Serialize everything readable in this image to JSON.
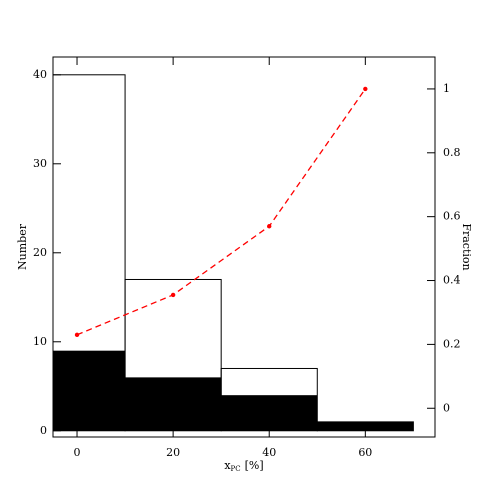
{
  "chart_data": {
    "type": "histogram",
    "bins": [
      -10,
      10,
      30,
      50,
      70
    ],
    "series": [
      {
        "type": "histogram",
        "style": "step",
        "color": "#000000",
        "values": [
          40,
          17,
          7,
          1
        ]
      },
      {
        "type": "histogram",
        "style": "filled",
        "color": "#000000",
        "values": [
          9,
          6,
          4,
          1
        ]
      },
      {
        "type": "line",
        "axis": "y2",
        "style": "dashed",
        "color": "#ff0000",
        "x": [
          0,
          20,
          40,
          60
        ],
        "values": [
          0.23,
          0.355,
          0.57,
          1.0
        ]
      }
    ],
    "xlabel": {
      "main": "x",
      "sub": "PC",
      "unit": "[%]"
    },
    "ylabel": "Number",
    "y2label": "Fraction",
    "xlim": [
      -5,
      74.5
    ],
    "ylim": [
      -0.7,
      42
    ],
    "y2lim": [
      -0.09,
      1.1
    ],
    "xticks": [
      0,
      20,
      40,
      60
    ],
    "yticks": [
      0,
      10,
      20,
      30,
      40
    ],
    "y2ticks": [
      0,
      0.2,
      0.4,
      0.6,
      0.8,
      1
    ]
  }
}
